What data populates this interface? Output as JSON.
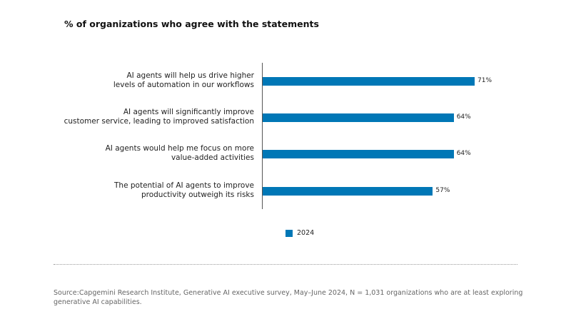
{
  "chart_data": {
    "type": "bar",
    "orientation": "horizontal",
    "title": "% of organizations who agree with the statements",
    "categories": [
      [
        "AI agents will help us drive higher",
        "levels of automation in our workflows"
      ],
      [
        "AI agents will significantly improve",
        "customer service, leading to improved satisfaction"
      ],
      [
        "AI agents would help me focus on more",
        "value-added activities"
      ],
      [
        "The potential of AI agents to improve",
        "productivity outweigh its risks"
      ]
    ],
    "series": [
      {
        "name": "2024",
        "values": [
          71,
          64,
          64,
          57
        ],
        "color": "#0077b6"
      }
    ],
    "value_labels": [
      "71%",
      "64%",
      "64%",
      "57%"
    ],
    "xlim": [
      0,
      100
    ],
    "legend": "bottom-center",
    "grid": false
  },
  "source": "Source:Capgemini Research Institute, Generative AI executive survey, May–June 2024, N = 1,031 organizations who are at least exploring generative AI capabilities."
}
